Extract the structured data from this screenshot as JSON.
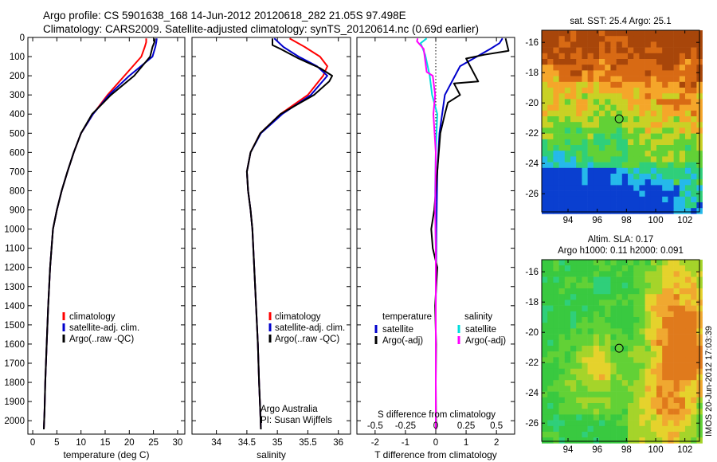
{
  "header": {
    "line1": "Argo profile: CS 5901638_168 14-Jun-2012 20120618_282 21.05S 97.498E",
    "line2": "Climatology: CARS2009. Satellite-adjusted climatology: synTS_20120614.nc (0.69d earlier)"
  },
  "footer_stamp": "IMOS 20-Jun-2012 17:03:39",
  "chart_data": [
    {
      "type": "line",
      "id": "temperature",
      "xlabel": "temperature (deg C)",
      "xlim": [
        -1,
        31.5
      ],
      "xticks": [
        0,
        5,
        10,
        15,
        20,
        25,
        30
      ],
      "ylim": [
        2070,
        0
      ],
      "yticks": [
        0,
        100,
        200,
        300,
        400,
        500,
        600,
        700,
        800,
        900,
        1000,
        1100,
        1200,
        1300,
        1400,
        1500,
        1600,
        1700,
        1800,
        1900,
        2000
      ],
      "legend": {
        "position": "lower-left",
        "entries": [
          "climatology",
          "satellite-adj. clim.",
          "Argo(..raw -QC)"
        ]
      },
      "series": [
        {
          "name": "climatology",
          "color": "#ff0000",
          "x": [
            23.5,
            23.5,
            23.2,
            22.5,
            19,
            15.5,
            12.5,
            10,
            8.5,
            7.2,
            6,
            5,
            4.2,
            3.6,
            3.2,
            2.9,
            2.6,
            2.45,
            2.3
          ],
          "y": [
            5,
            25,
            50,
            100,
            200,
            300,
            400,
            500,
            600,
            700,
            800,
            900,
            1000,
            1200,
            1400,
            1600,
            1800,
            1950,
            2045
          ]
        },
        {
          "name": "satellite-adj. clim.",
          "color": "#0000cc",
          "x": [
            25.7,
            25.6,
            25.4,
            24.8,
            20,
            15.8,
            12.5,
            10,
            8.5,
            7.2,
            6,
            5,
            4.2,
            3.6,
            3.2,
            2.9,
            2.6,
            2.45,
            2.3
          ],
          "y": [
            5,
            25,
            50,
            100,
            200,
            300,
            400,
            500,
            600,
            700,
            800,
            900,
            1000,
            1200,
            1400,
            1600,
            1800,
            1950,
            2045
          ]
        },
        {
          "name": "Argo(..raw -QC)",
          "color": "#000000",
          "x": [
            25.3,
            25.2,
            24.8,
            24.3,
            21,
            16.2,
            12.3,
            10,
            8.5,
            7.2,
            6,
            5,
            4.2,
            3.6,
            3.2,
            2.9,
            2.6,
            2.45,
            2.3
          ],
          "y": [
            5,
            25,
            50,
            100,
            200,
            300,
            400,
            500,
            600,
            700,
            800,
            900,
            1000,
            1200,
            1400,
            1600,
            1800,
            1950,
            2045
          ]
        }
      ]
    },
    {
      "type": "line",
      "id": "salinity",
      "xlabel": "salinity",
      "xlim": [
        33.6,
        36.2
      ],
      "xticks": [
        34,
        34.5,
        35,
        35.5,
        36
      ],
      "ylim": [
        2070,
        0
      ],
      "legend": {
        "position": "lower-left",
        "entries": [
          "climatology",
          "satellite-adj. clim.",
          "Argo(..raw -QC)"
        ]
      },
      "annotations": [
        "Argo Australia",
        "PI: Susan Wijffels"
      ],
      "series": [
        {
          "name": "climatology",
          "color": "#ff0000",
          "x": [
            35.2,
            35.45,
            35.7,
            35.82,
            35.75,
            35.5,
            35.05,
            34.72,
            34.56,
            34.5,
            34.52,
            34.56,
            34.59,
            34.62,
            34.65,
            34.68,
            34.7,
            34.72,
            34.73
          ],
          "y": [
            5,
            50,
            100,
            150,
            200,
            300,
            400,
            500,
            600,
            700,
            800,
            900,
            1000,
            1200,
            1400,
            1600,
            1800,
            1950,
            2045
          ]
        },
        {
          "name": "satellite-adj. clim.",
          "color": "#0000cc",
          "x": [
            34.95,
            35.1,
            35.35,
            35.65,
            35.82,
            35.55,
            35.08,
            34.73,
            34.56,
            34.5,
            34.52,
            34.56,
            34.59,
            34.62,
            34.65,
            34.68,
            34.7,
            34.72,
            34.73
          ],
          "y": [
            5,
            50,
            100,
            150,
            200,
            300,
            400,
            500,
            600,
            700,
            800,
            900,
            1000,
            1200,
            1400,
            1600,
            1800,
            1950,
            2045
          ]
        },
        {
          "name": "Argo(..raw -QC)",
          "color": "#000000",
          "x": [
            34.92,
            34.92,
            35.05,
            35.35,
            35.7,
            35.9,
            35.85,
            35.6,
            35.05,
            34.72,
            34.56,
            34.5,
            34.52,
            34.56,
            34.59,
            34.62,
            34.65,
            34.68,
            34.7,
            34.72,
            34.73
          ],
          "y": [
            5,
            40,
            60,
            110,
            160,
            200,
            230,
            300,
            400,
            500,
            600,
            700,
            800,
            900,
            1000,
            1200,
            1400,
            1600,
            1800,
            1950,
            2045
          ]
        }
      ]
    },
    {
      "type": "line",
      "id": "differences",
      "xlabel": "T difference from climatology",
      "xlabel_top": "S difference from climatology",
      "xlim": [
        -2.6,
        2.6
      ],
      "xticks": [
        -2,
        -1,
        0,
        1,
        2
      ],
      "xticks_top": [
        -0.5,
        -0.25,
        0,
        0.25,
        0.5
      ],
      "xlim_top": [
        -0.65,
        0.65
      ],
      "ylim": [
        2070,
        0
      ],
      "legend": {
        "position": "lower-center",
        "temperature_title": "temperature",
        "salinity_title": "salinity",
        "entries": [
          "satellite",
          "Argo(-adj)",
          "satellite",
          "Argo(-adj)"
        ]
      },
      "series": [
        {
          "name": "satellite",
          "group": "temperature",
          "color": "#0000cc",
          "x": [
            2.2,
            2.1,
            1.8,
            0.8,
            0.3,
            0.12,
            0.05,
            0.02,
            0,
            0,
            0
          ],
          "y": [
            5,
            30,
            60,
            150,
            300,
            500,
            700,
            1000,
            1400,
            1800,
            2045
          ]
        },
        {
          "name": "Argo(-adj)",
          "group": "temperature",
          "color": "#000000",
          "x": [
            2.3,
            2.4,
            1.6,
            1.0,
            1.4,
            0.6,
            0.8,
            0.4,
            0.3,
            0.15,
            0.05,
            -0.05,
            -0.15,
            -0.1,
            0.05,
            -0.02,
            0.01,
            0.0,
            0.01
          ],
          "y": [
            5,
            70,
            90,
            110,
            230,
            240,
            300,
            340,
            400,
            500,
            700,
            900,
            1000,
            1100,
            1200,
            1400,
            1600,
            1800,
            2045
          ]
        },
        {
          "name": "satellite",
          "group": "salinity",
          "color": "#00dddd",
          "x": [
            -0.3,
            -0.5,
            -0.35,
            -0.2,
            -0.12,
            0.05,
            0.0,
            -0.02,
            0.0,
            0.0,
            0.0
          ],
          "y": [
            5,
            30,
            90,
            200,
            300,
            400,
            600,
            800,
            1100,
            1500,
            2045
          ]
        },
        {
          "name": "Argo(-adj)",
          "group": "salinity",
          "color": "#ff00ff",
          "x": [
            -0.6,
            -0.62,
            -0.4,
            -0.3,
            -0.1,
            -0.02,
            -0.08,
            0.0,
            -0.02,
            0.0,
            0.0,
            0.0
          ],
          "y": [
            5,
            20,
            60,
            180,
            200,
            300,
            400,
            600,
            900,
            1100,
            1500,
            2045
          ]
        }
      ]
    },
    {
      "type": "heatmap",
      "id": "sst-map",
      "title": "sat. SST: 25.4 Argo: 25.1",
      "xlim": [
        92.2,
        103
      ],
      "xticks": [
        94,
        96,
        98,
        100,
        102
      ],
      "ylim": [
        -27.2,
        -15.2
      ],
      "yticks": [
        -16,
        -18,
        -20,
        -22,
        -24,
        -26
      ],
      "marker": {
        "lon": 97.5,
        "lat": -21.05
      },
      "colors": [
        "#0a3fd0",
        "#25b9ea",
        "#2fcf7a",
        "#62d136",
        "#c9d125",
        "#f5a62a",
        "#d86a14",
        "#a8460a"
      ]
    },
    {
      "type": "heatmap",
      "id": "sla-map",
      "title": "Altim. SLA: 0.17",
      "subtitle": "Argo h1000: 0.11 h2000: 0.091",
      "xlim": [
        92.2,
        103
      ],
      "xticks": [
        94,
        96,
        98,
        100,
        102
      ],
      "ylim": [
        -27.2,
        -15.2
      ],
      "yticks": [
        -16,
        -18,
        -20,
        -22,
        -24,
        -26
      ],
      "marker": {
        "lon": 97.5,
        "lat": -21.05
      },
      "colors": [
        "#2fcf7a",
        "#39c940",
        "#62d136",
        "#a5d42a",
        "#e5d22c",
        "#f0a830",
        "#e07a1c"
      ]
    }
  ]
}
